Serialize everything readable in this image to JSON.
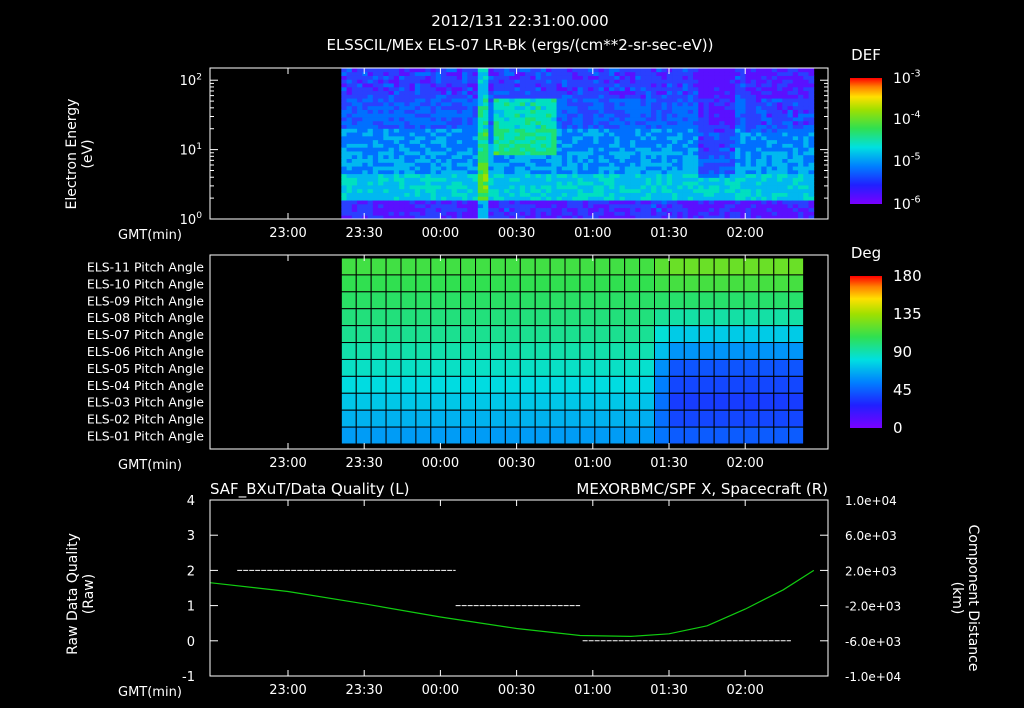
{
  "header": {
    "timestamp": "2012/131 22:31:00.000",
    "subtitle": "ELSSCIL/MEx ELS-07 LR-Bk  (ergs/(cm**2-sr-sec-eV))"
  },
  "chart_data": [
    {
      "type": "heatmap",
      "name": "energy-spectrogram",
      "ylabel": "Electron Energy (eV)",
      "yscale": "log",
      "ylim": [
        1,
        150
      ],
      "y_tick_labels": [
        "10^0",
        "10^1",
        "10^2"
      ],
      "x_axis_label": "GMT(min)",
      "x_tick_labels": [
        "23:00",
        "23:30",
        "00:00",
        "00:30",
        "01:00",
        "01:30",
        "02:00"
      ],
      "data_start": "23:21",
      "data_end": "02:27",
      "colorbar": {
        "title": "DEF",
        "ticks": [
          "10^-3",
          "10^-4",
          "10^-5",
          "10^-6"
        ]
      }
    },
    {
      "type": "heatmap",
      "name": "pitch-angle",
      "rows": [
        "ELS-11 Pitch Angle",
        "ELS-10 Pitch Angle",
        "ELS-09 Pitch Angle",
        "ELS-08 Pitch Angle",
        "ELS-07 Pitch Angle",
        "ELS-06 Pitch Angle",
        "ELS-05 Pitch Angle",
        "ELS-04 Pitch Angle",
        "ELS-03 Pitch Angle",
        "ELS-02 Pitch Angle",
        "ELS-01 Pitch Angle"
      ],
      "x_axis_label": "GMT(min)",
      "x_tick_labels": [
        "23:00",
        "23:30",
        "00:00",
        "00:30",
        "01:00",
        "01:30",
        "02:00"
      ],
      "colorbar": {
        "title": "Deg",
        "ticks": [
          "180",
          "135",
          "90",
          "45",
          "0"
        ]
      },
      "early_values_deg": [
        112,
        108,
        104,
        100,
        96,
        91,
        86,
        80,
        74,
        68,
        62
      ],
      "late_values_deg": [
        122,
        113,
        103,
        92,
        75,
        60,
        42,
        38,
        35,
        38,
        44
      ],
      "transition_time": "01:25"
    },
    {
      "type": "line",
      "name": "data-quality",
      "title_left": "SAF_BXuT/Data Quality (L)",
      "title_right": "MEXORBMC/SPF X, Spacecraft (R)",
      "ylabel_left": "Raw Data Quality (Raw)",
      "ylabel_right": "Component Distance (km)",
      "x_axis_label": "GMT(min)",
      "x_tick_labels": [
        "23:00",
        "23:30",
        "00:00",
        "00:30",
        "01:00",
        "01:30",
        "02:00"
      ],
      "ylim_left": [
        -1,
        4
      ],
      "y_ticks_left": [
        "4",
        "3",
        "2",
        "1",
        "0",
        "-1"
      ],
      "ylim_right": [
        -10000,
        10000
      ],
      "y_ticks_right": [
        "1.0e+04",
        "6.0e+03",
        "2.0e+03",
        "-2.0e+03",
        "-6.0e+03",
        "-1.0e+04"
      ],
      "series": [
        {
          "name": "SAF_BXuT/Data Quality (L)",
          "color": "#ffffff",
          "segments": [
            {
              "x": [
                "22:40",
                "00:06"
              ],
              "y": 2
            },
            {
              "x": [
                "00:06",
                "00:55"
              ],
              "y": 1
            },
            {
              "x": [
                "00:56",
                "02:18"
              ],
              "y": 0
            }
          ]
        },
        {
          "name": "MEXORBMC/SPF X, Spacecraft (R)",
          "color": "#11cc11",
          "x": [
            "22:31",
            "23:00",
            "23:30",
            "00:00",
            "00:30",
            "00:55",
            "01:15",
            "01:30",
            "01:45",
            "02:00",
            "02:15",
            "02:27"
          ],
          "y": [
            600,
            -400,
            -1800,
            -3300,
            -4600,
            -5400,
            -5500,
            -5200,
            -4300,
            -2400,
            -200,
            2000
          ]
        }
      ]
    }
  ]
}
